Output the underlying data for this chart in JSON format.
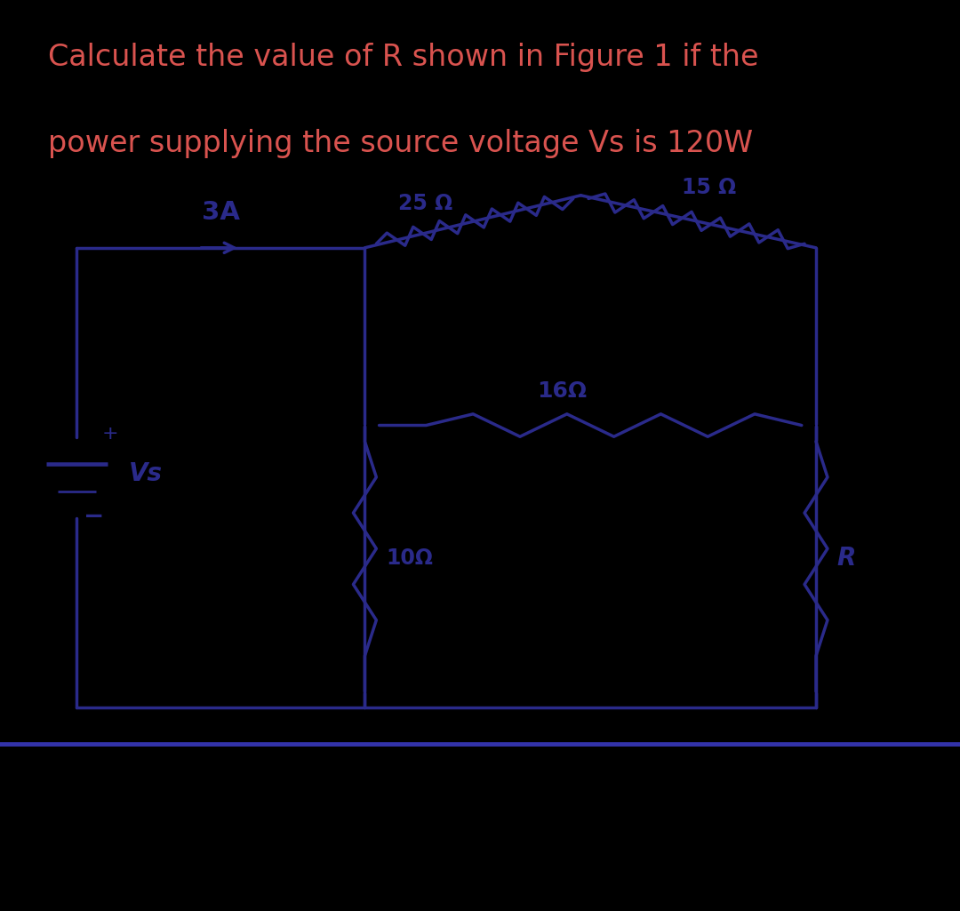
{
  "title_line1": "Calculate the value of R shown in Figure 1 if the",
  "title_line2": "power supplying the source voltage Vs is 120W",
  "title_color": "#d9534f",
  "title_fontsize": 24,
  "bg_color": "#000000",
  "circuit_bg": "#f0f0ec",
  "lc": "#2a2a8a",
  "lw": 2.5,
  "label_3A": "3A",
  "label_25ohm": "25 Ω",
  "label_15ohm": "15 Ω",
  "label_16ohm": "16Ω",
  "label_10ohm": "10Ω",
  "label_R": "R",
  "label_Vs": "Vs",
  "label_plus": "+",
  "label_minus": "−"
}
